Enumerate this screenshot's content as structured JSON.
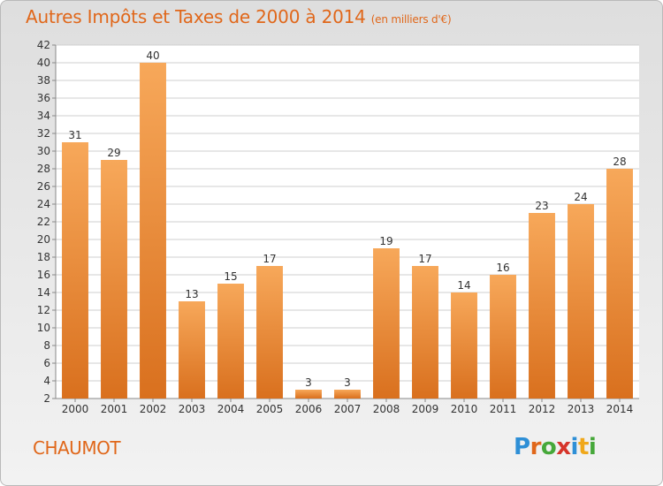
{
  "title": "Autres Impôts et Taxes de 2000 à 2014",
  "subtitle": "(en milliers d'€)",
  "commune": "CHAUMOT",
  "logo": {
    "letters": [
      "P",
      "r",
      "o",
      "x",
      "i",
      "t",
      "i"
    ],
    "colors": [
      "#2e8fd6",
      "#e0671a",
      "#46a83a",
      "#d6342a",
      "#2e8fd6",
      "#f0a81a",
      "#46a83a"
    ]
  },
  "colors": {
    "bar_light": "#f7a85a",
    "bar_dark": "#d9701e",
    "title": "#e0671a",
    "grid": "#cfcfcf"
  },
  "chart_data": {
    "type": "bar",
    "categories": [
      "2000",
      "2001",
      "2002",
      "2003",
      "2004",
      "2005",
      "2006",
      "2007",
      "2008",
      "2009",
      "2010",
      "2011",
      "2012",
      "2013",
      "2014"
    ],
    "values": [
      31,
      29,
      40,
      13,
      15,
      17,
      3,
      3,
      19,
      17,
      14,
      16,
      23,
      24,
      28
    ],
    "ylim": [
      2,
      42
    ],
    "yticks": [
      2,
      4,
      6,
      8,
      10,
      12,
      14,
      16,
      18,
      20,
      22,
      24,
      26,
      28,
      30,
      32,
      34,
      36,
      38,
      40,
      42
    ],
    "grid": true,
    "xlabel": "",
    "ylabel": ""
  }
}
